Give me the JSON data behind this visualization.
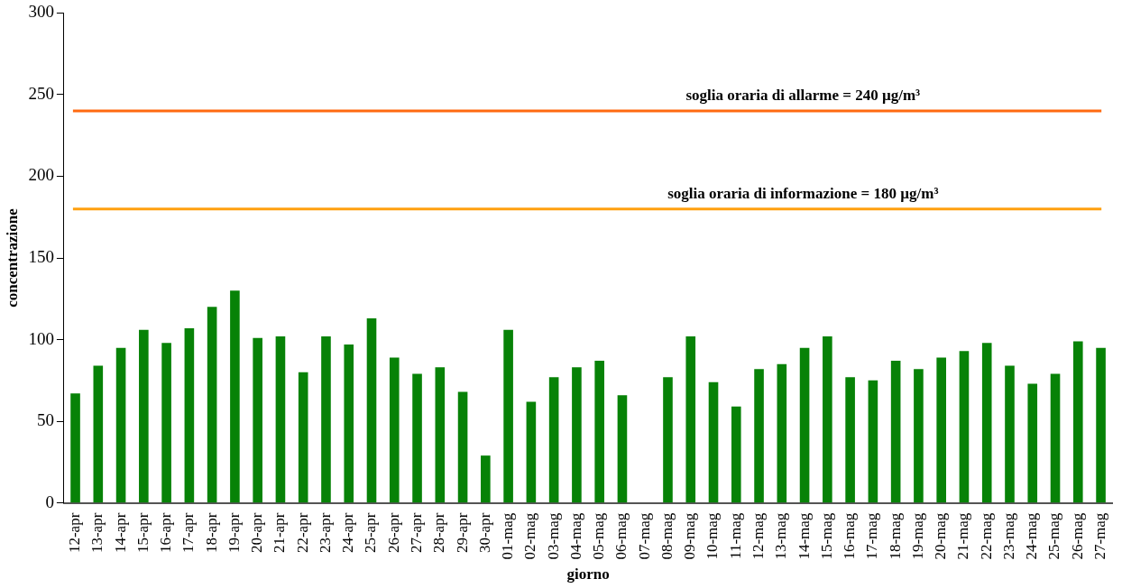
{
  "chart_data": {
    "type": "bar",
    "xlabel": "giorno",
    "ylabel": "concentrazione",
    "categories": [
      "12-apr",
      "13-apr",
      "14-apr",
      "15-apr",
      "16-apr",
      "17-apr",
      "18-apr",
      "19-apr",
      "20-apr",
      "21-apr",
      "22-apr",
      "23-apr",
      "24-apr",
      "25-apr",
      "26-apr",
      "27-apr",
      "28-apr",
      "29-apr",
      "30-apr",
      "01-mag",
      "02-mag",
      "03-mag",
      "04-mag",
      "05-mag",
      "06-mag",
      "07-mag",
      "08-mag",
      "09-mag",
      "10-mag",
      "11-mag",
      "12-mag",
      "13-mag",
      "14-mag",
      "15-mag",
      "16-mag",
      "17-mag",
      "18-mag",
      "19-mag",
      "20-mag",
      "21-mag",
      "22-mag",
      "23-mag",
      "24-mag",
      "25-mag",
      "26-mag",
      "27-mag"
    ],
    "values": [
      67,
      84,
      95,
      106,
      98,
      107,
      120,
      130,
      101,
      102,
      80,
      102,
      97,
      113,
      89,
      79,
      83,
      68,
      29,
      106,
      62,
      77,
      83,
      87,
      66,
      null,
      77,
      102,
      74,
      59,
      82,
      85,
      95,
      102,
      77,
      75,
      87,
      82,
      89,
      93,
      98,
      84,
      73,
      79,
      99,
      95
    ],
    "color": "#078207",
    "ylim": [
      0,
      300
    ],
    "yticks": [
      0,
      50,
      100,
      150,
      200,
      250,
      300
    ],
    "grid": false,
    "legend": false,
    "ref_lines": [
      {
        "axis": "y",
        "value": 240,
        "label": "soglia oraria di allarme = 240 µg/m³",
        "color": "#ff6a10"
      },
      {
        "axis": "y",
        "value": 180,
        "label": "soglia oraria di informazione = 180 µg/m³",
        "color": "#ffa010"
      }
    ]
  }
}
